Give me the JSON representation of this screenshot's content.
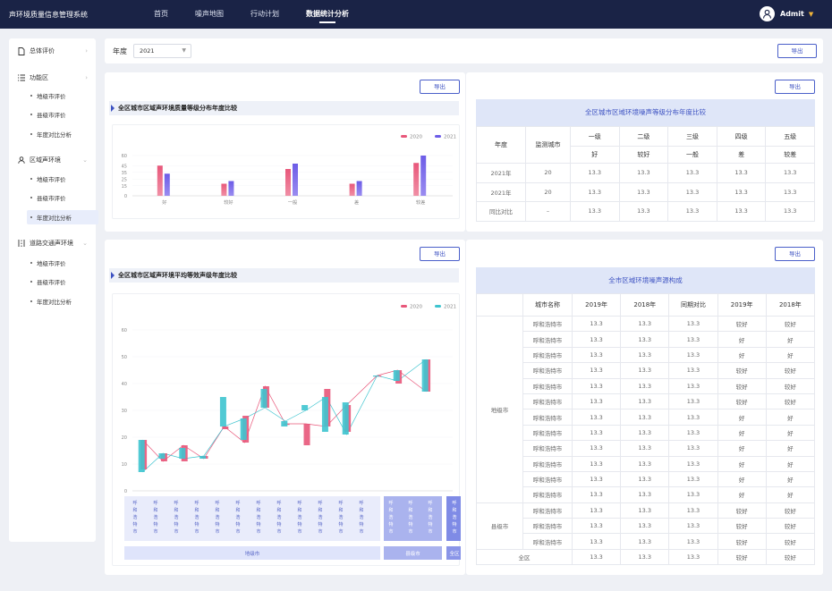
{
  "header": {
    "app_title": "声环境质量信息管理系统",
    "nav": [
      {
        "label": "首页"
      },
      {
        "label": "噪声地图"
      },
      {
        "label": "行动计划"
      },
      {
        "label": "数据统计分析"
      }
    ],
    "user": "Admit"
  },
  "sidebar": {
    "groups": [
      {
        "label": "总体评价",
        "items": []
      },
      {
        "label": "功能区",
        "items": [
          {
            "label": "地级市评价"
          },
          {
            "label": "县级市评价"
          },
          {
            "label": "年度对比分析"
          }
        ]
      },
      {
        "label": "区域声环境",
        "items": [
          {
            "label": "地级市评价"
          },
          {
            "label": "县级市评价"
          },
          {
            "label": "年度对比分析"
          }
        ]
      },
      {
        "label": "道路交通声环境",
        "items": [
          {
            "label": "地级市评价"
          },
          {
            "label": "县级市评价"
          },
          {
            "label": "年度对比分析"
          }
        ]
      }
    ]
  },
  "filter": {
    "label": "年度",
    "year": "2021",
    "export": "导出"
  },
  "export_label": "导出",
  "bar_title": "全区城市区域声环境质量等级分布年度比较",
  "table1": {
    "title": "全区城市区域环境噪声等级分布年度比较",
    "headers": [
      "年度",
      "监测城市",
      "一级",
      "二级",
      "三级",
      "四级",
      "五级"
    ],
    "subheaders": [
      "好",
      "较好",
      "一般",
      "差",
      "较差"
    ],
    "rows": [
      [
        "2021年",
        "20",
        "13.3",
        "13.3",
        "13.3",
        "13.3",
        "13.3"
      ],
      [
        "2021年",
        "20",
        "13.3",
        "13.3",
        "13.3",
        "13.3",
        "13.3"
      ],
      [
        "同比对比",
        "–",
        "13.3",
        "13.3",
        "13.3",
        "13.3",
        "13.3"
      ]
    ]
  },
  "line_title": "全区城市区域声环境平均等效声级年度比较",
  "table2": {
    "title": "全市区域环境噪声源构成",
    "headers": [
      "",
      "城市名称",
      "2019年",
      "2018年",
      "同期对比",
      "2019年",
      "2018年"
    ],
    "group_di": "地级市",
    "group_xian": "县级市",
    "total": "全区",
    "rows": [
      [
        "呼和浩特市",
        "13.3",
        "13.3",
        "13.3",
        "较好",
        "较好"
      ],
      [
        "呼和浩特市",
        "13.3",
        "13.3",
        "13.3",
        "好",
        "好"
      ],
      [
        "呼和浩特市",
        "13.3",
        "13.3",
        "13.3",
        "好",
        "好"
      ],
      [
        "呼和浩特市",
        "13.3",
        "13.3",
        "13.3",
        "较好",
        "较好"
      ],
      [
        "呼和浩特市",
        "13.3",
        "13.3",
        "13.3",
        "较好",
        "较好"
      ],
      [
        "呼和浩特市",
        "13.3",
        "13.3",
        "13.3",
        "较好",
        "较好"
      ],
      [
        "呼和浩特市",
        "13.3",
        "13.3",
        "13.3",
        "好",
        "好"
      ],
      [
        "呼和浩特市",
        "13.3",
        "13.3",
        "13.3",
        "好",
        "好"
      ],
      [
        "呼和浩特市",
        "13.3",
        "13.3",
        "13.3",
        "好",
        "好"
      ],
      [
        "呼和浩特市",
        "13.3",
        "13.3",
        "13.3",
        "好",
        "好"
      ],
      [
        "呼和浩特市",
        "13.3",
        "13.3",
        "13.3",
        "好",
        "好"
      ],
      [
        "呼和浩特市",
        "13.3",
        "13.3",
        "13.3",
        "好",
        "好"
      ],
      [
        "呼和浩特市",
        "13.3",
        "13.3",
        "13.3",
        "较好",
        "较好"
      ],
      [
        "呼和浩特市",
        "13.3",
        "13.3",
        "13.3",
        "较好",
        "较好"
      ],
      [
        "呼和浩特市",
        "13.3",
        "13.3",
        "13.3",
        "较好",
        "较好"
      ]
    ],
    "total_row": [
      "",
      "13.3",
      "13.3",
      "13.3",
      "较好",
      "较好"
    ]
  },
  "colors": {
    "s2020": "#e8577a",
    "s2021": "#6c5ce7",
    "s2021_line": "#3ec4cf",
    "accent": "#3d52c2"
  },
  "chart_data": [
    {
      "type": "bar",
      "categories": [
        "好",
        "较好",
        "一般",
        "差",
        "较差"
      ],
      "series": [
        {
          "name": "2020",
          "values": [
            45,
            18,
            40,
            18,
            49
          ]
        },
        {
          "name": "2021",
          "values": [
            33,
            22,
            48,
            22,
            60
          ]
        }
      ],
      "ylim": [
        0,
        60
      ],
      "yticks": [
        0,
        15,
        25,
        35,
        45,
        60
      ],
      "legend": "top-right"
    },
    {
      "type": "line",
      "x_label_text": "呼和浩特市",
      "groups": [
        {
          "name": "地级市",
          "count": 12
        },
        {
          "name": "县级市",
          "count": 3
        },
        {
          "name": "全区",
          "count": 1
        }
      ],
      "series": [
        {
          "name": "2020",
          "values": [
            [
              8,
              19
            ],
            [
              11,
              14
            ],
            [
              11,
              17
            ],
            [
              12,
              13
            ],
            [
              23,
              24
            ],
            [
              18,
              28
            ],
            [
              31,
              39
            ],
            [
              25,
              25
            ],
            [
              17,
              25
            ],
            [
              24,
              38
            ],
            [
              22,
              32
            ],
            [
              43,
              43
            ],
            [
              40,
              45
            ],
            [
              37,
              49
            ]
          ]
        },
        {
          "name": "2021",
          "values": [
            [
              7,
              19
            ],
            [
              12,
              14
            ],
            [
              12,
              16
            ],
            [
              12,
              13
            ],
            [
              24,
              35
            ],
            [
              19,
              27
            ],
            [
              31,
              38
            ],
            [
              24,
              26
            ],
            [
              30,
              32
            ],
            [
              22,
              35
            ],
            [
              21,
              33
            ],
            [
              43,
              43
            ],
            [
              41,
              45
            ],
            [
              37,
              49
            ]
          ]
        }
      ],
      "ylim": [
        0,
        60
      ],
      "yticks": [
        0,
        10,
        20,
        30,
        40,
        50,
        60
      ],
      "legend": "top-right"
    }
  ]
}
